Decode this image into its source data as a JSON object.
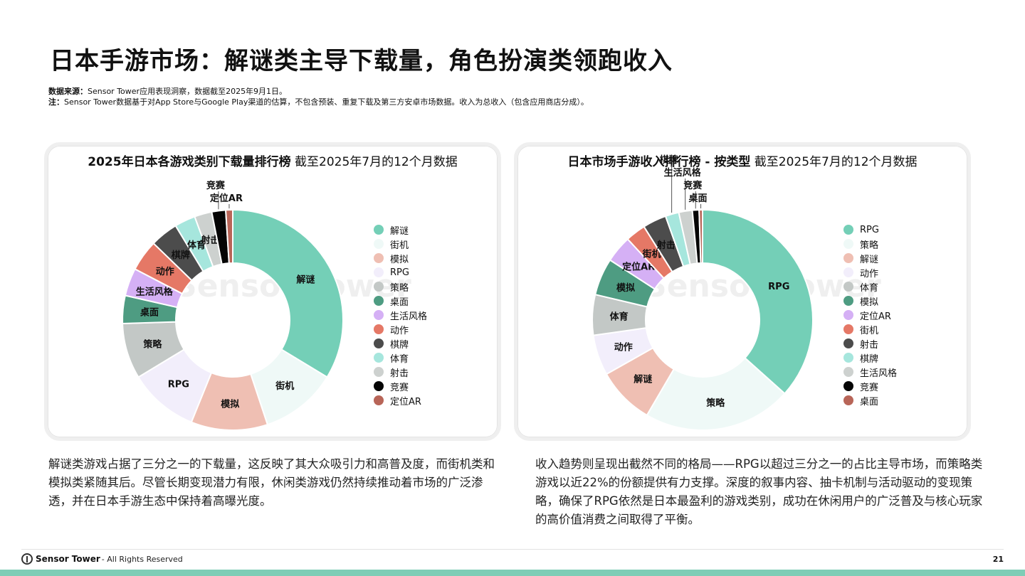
{
  "page": {
    "title": "日本手游市场：解谜类主导下载量，角色扮演类领跑收入",
    "source_label": "数据来源：",
    "source_text": "Sensor Tower应用表现洞察，数据截至2025年9月1日。",
    "note_label": "注：",
    "note_text": "Sensor Tower数据基于对App Store与Google Play渠道的估算，不包含预装、重复下载及第三方安卓市场数据。收入为总收入（包含应用商店分成）。",
    "page_number": "21"
  },
  "footer": {
    "brand": "Sensor Tower",
    "rights": "- All Rights Reserved"
  },
  "watermark": "Sensor Tower",
  "left_description": "解谜类游戏占据了三分之一的下载量，这反映了其大众吸引力和高普及度，而街机类和模拟类紧随其后。尽管长期变现潜力有限，休闲类游戏仍然持续推动着市场的广泛渗透，并在日本手游生态中保持着高曝光度。",
  "right_description": "收入趋势则呈现出截然不同的格局——RPG以超过三分之一的占比主导市场，而策略类游戏以近22%的份额提供有力支撑。深度的叙事内容、抽卡机制与活动驱动的变现策略，确保了RPG依然是日本最盈利的游戏类别，成功在休闲用户的广泛普及与核心玩家的高价值消费之间取得了平衡。",
  "chart_data": [
    {
      "type": "pie",
      "title_bold": "2025年日本各游戏类别下载量排行榜",
      "title_normal": " 截至2025年7月的12个月数据",
      "categories": [
        "解谜",
        "街机",
        "模拟",
        "RPG",
        "策略",
        "桌面",
        "生活风格",
        "动作",
        "棋牌",
        "体育",
        "射击",
        "竞赛",
        "定位AR"
      ],
      "values": [
        33,
        11,
        11,
        10,
        8,
        4,
        4,
        4.5,
        4,
        3,
        2.5,
        2,
        1
      ],
      "colors": [
        "#74cfb7",
        "#eff9f7",
        "#efbfb3",
        "#f2eefb",
        "#c3c8c6",
        "#4e9c82",
        "#d5b0f5",
        "#e57866",
        "#4c4c4c",
        "#a6e6dd",
        "#cdd1cf",
        "#050505",
        "#b86558"
      ],
      "legend": [
        "解谜",
        "街机",
        "模拟",
        "RPG",
        "策略",
        "桌面",
        "生活风格",
        "动作",
        "棋牌",
        "体育",
        "射击",
        "竞赛",
        "定位AR"
      ]
    },
    {
      "type": "pie",
      "title_bold": "日本市场手游收入排行榜 - 按类型",
      "title_normal": " 截至2025年7月的12个月数据",
      "categories": [
        "RPG",
        "策略",
        "解谜",
        "动作",
        "体育",
        "模拟",
        "定位AR",
        "街机",
        "射击",
        "棋牌",
        "生活风格",
        "竞赛",
        "桌面"
      ],
      "values": [
        37,
        22,
        8.5,
        6,
        6,
        5.5,
        4,
        3,
        3.5,
        2,
        2,
        1,
        0.5
      ],
      "colors": [
        "#74cfb7",
        "#eff9f7",
        "#efbfb3",
        "#f2eefb",
        "#c3c8c6",
        "#4e9c82",
        "#d5b0f5",
        "#e57866",
        "#4c4c4c",
        "#a6e6dd",
        "#cdd1cf",
        "#050505",
        "#b86558"
      ],
      "legend": [
        "RPG",
        "策略",
        "解谜",
        "动作",
        "体育",
        "模拟",
        "定位AR",
        "街机",
        "射击",
        "棋牌",
        "生活风格",
        "竞赛",
        "桌面"
      ]
    }
  ]
}
